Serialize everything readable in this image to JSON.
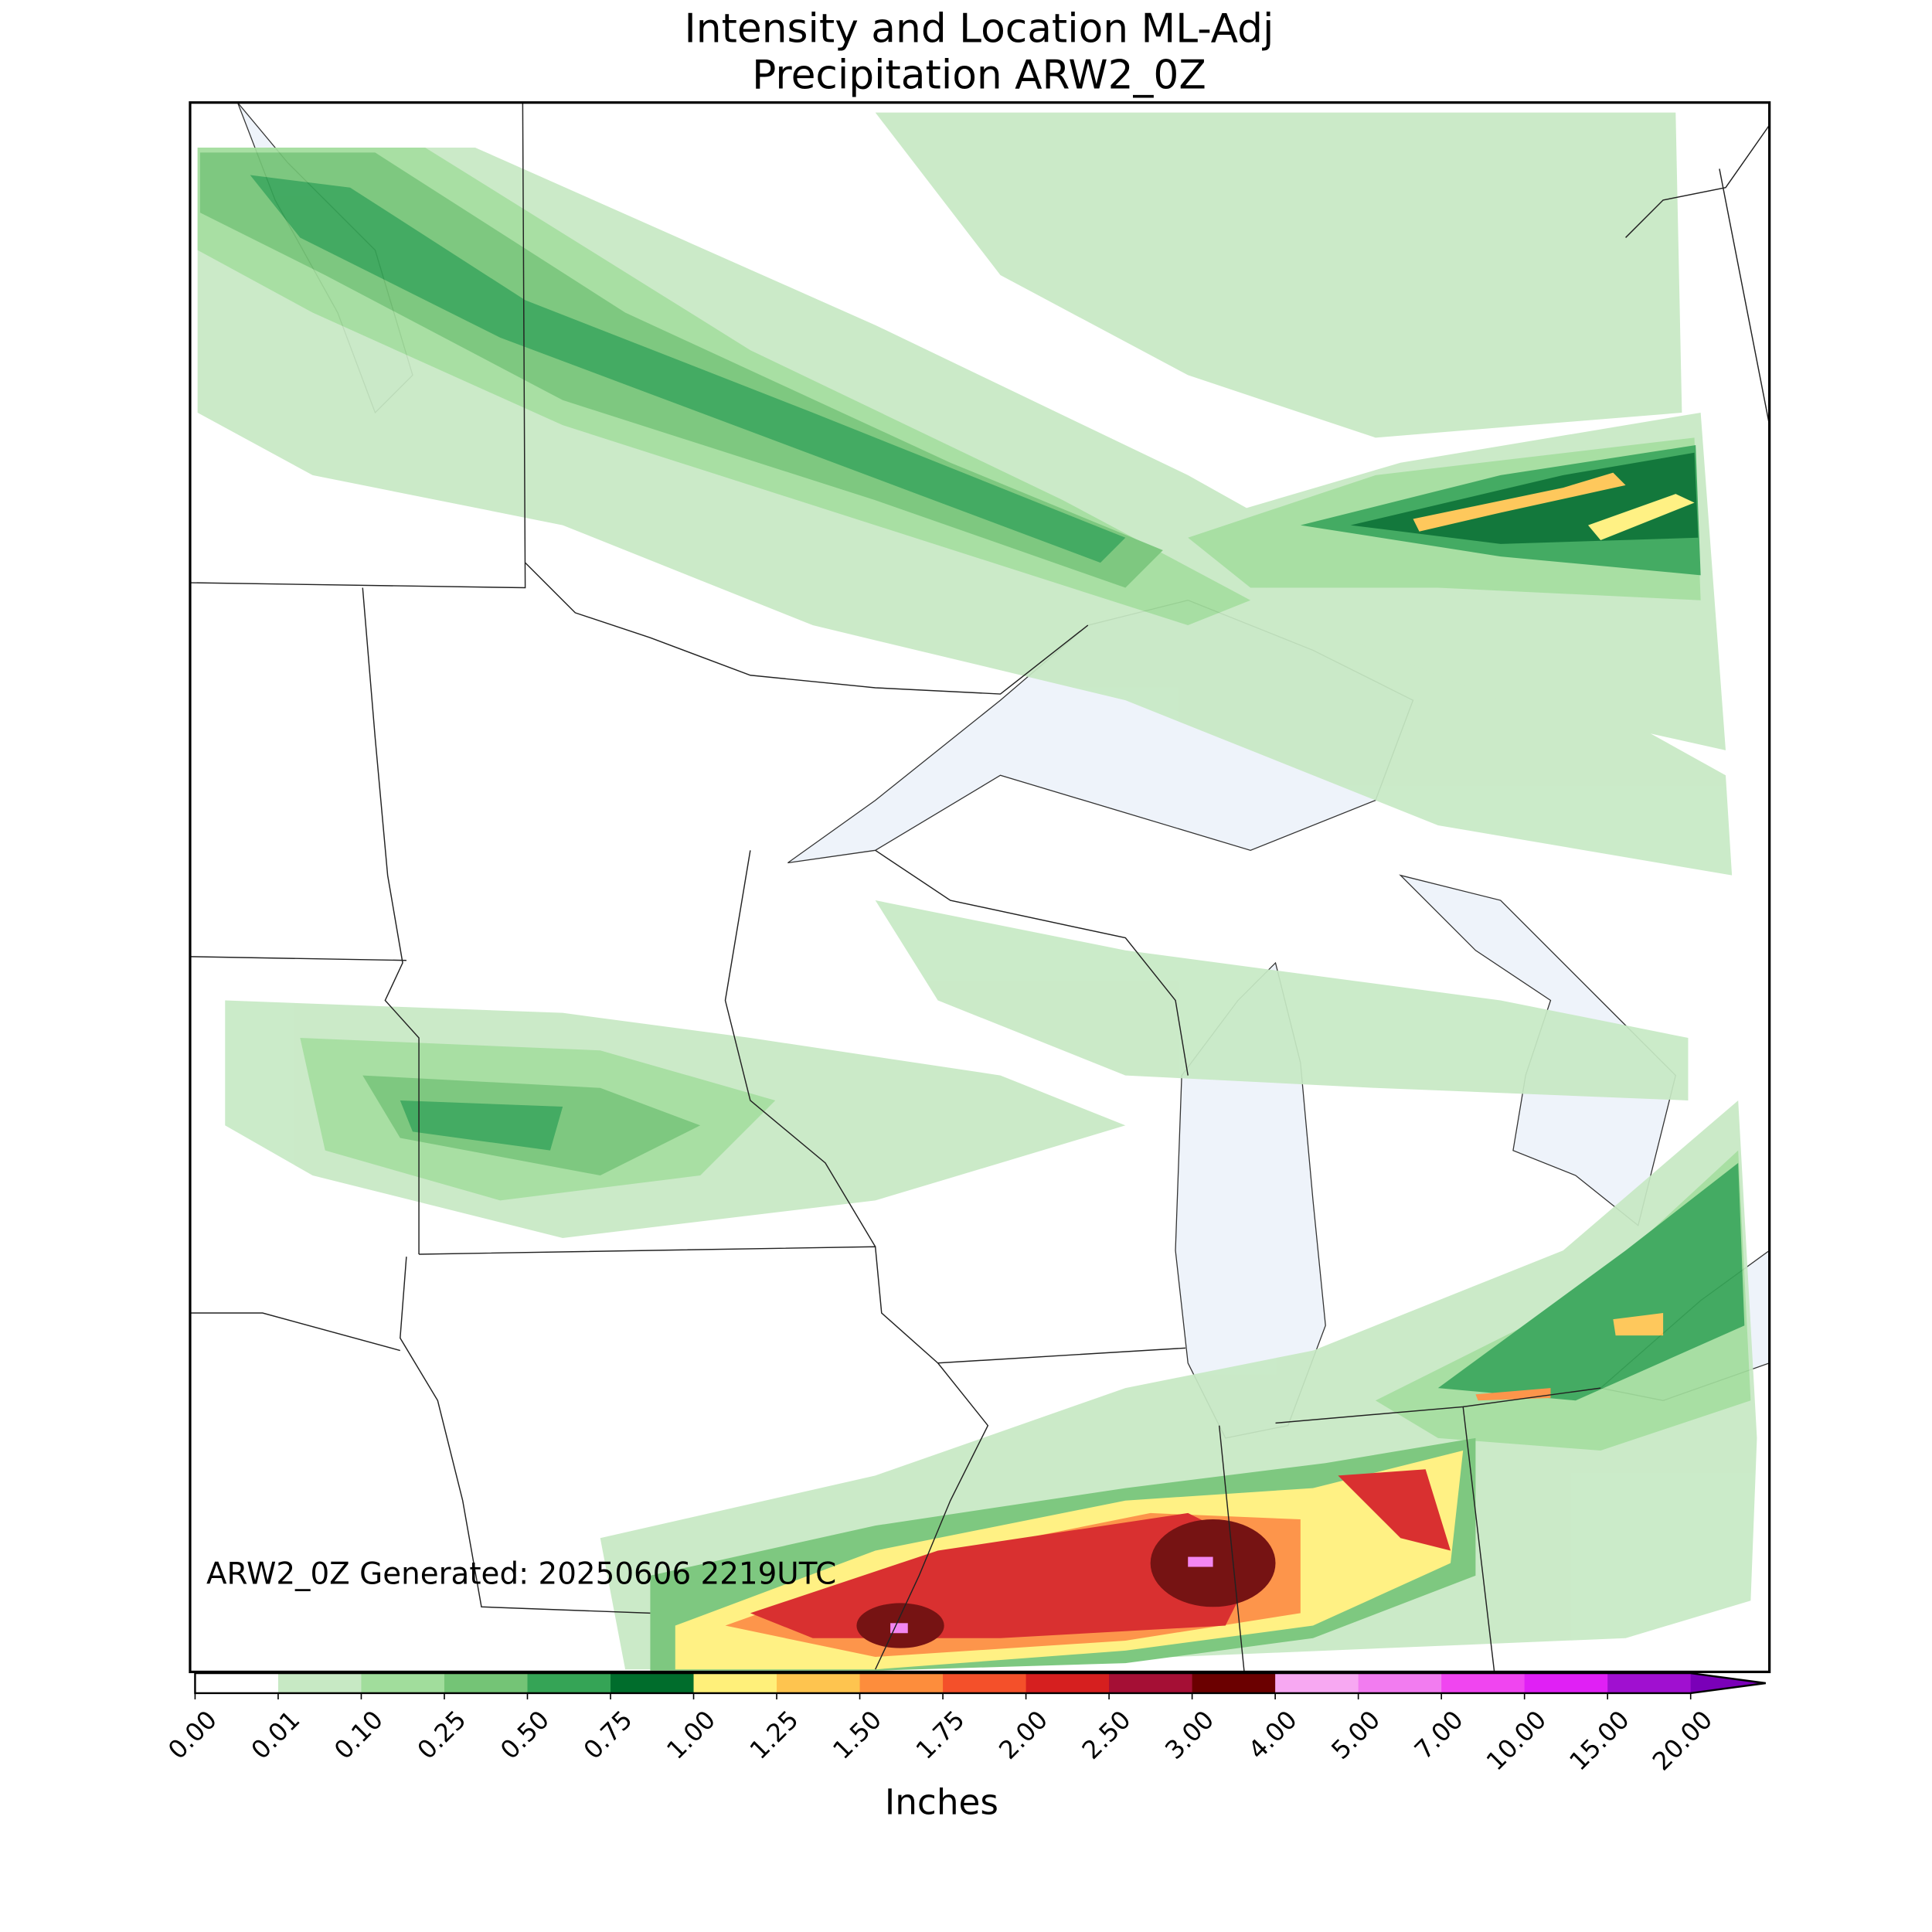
{
  "title": "Intensity and Location ML-Adj",
  "subtitle": "Precipitation ARW2_0Z",
  "annotation": "ARW2_0Z Generated: 20250606 2219UTC",
  "colorbar": {
    "label": "Inches",
    "ticks": [
      "0.00",
      "0.01",
      "0.10",
      "0.25",
      "0.50",
      "0.75",
      "1.00",
      "1.25",
      "1.50",
      "1.75",
      "2.00",
      "2.50",
      "3.00",
      "4.00",
      "5.00",
      "7.00",
      "10.00",
      "15.00",
      "20.00"
    ],
    "colors": [
      "#ffffff",
      "#c7e9c4",
      "#a1dd9c",
      "#74c476",
      "#35a456",
      "#006d2c",
      "#fff07a",
      "#fec44f",
      "#fd8d3c",
      "#f4502a",
      "#d61f1f",
      "#a50f35",
      "#6b0000",
      "#f7a8f2",
      "#f27cf0",
      "#f045f0",
      "#e020f5",
      "#a010d0"
    ],
    "extend_color": "#7a00b8"
  }
}
